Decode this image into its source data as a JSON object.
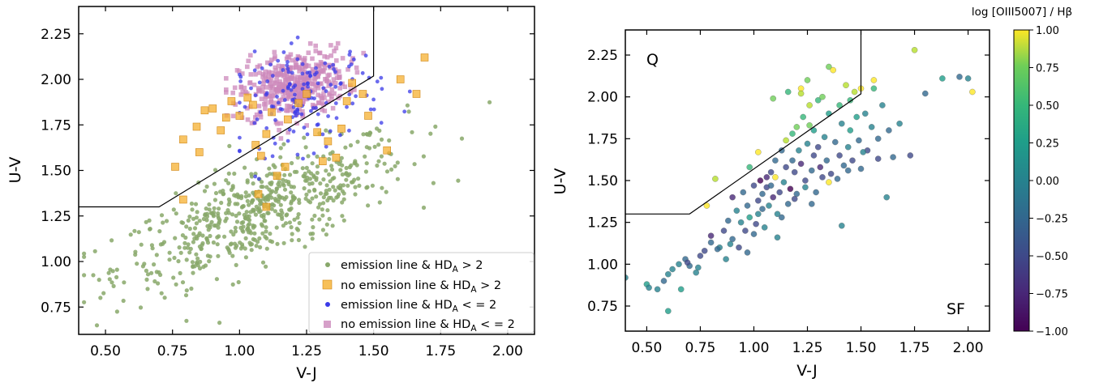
{
  "chart_data": [
    {
      "type": "scatter",
      "xlabel": "V-J",
      "ylabel": "U-V",
      "xlim": [
        0.4,
        2.1
      ],
      "ylim": [
        0.6,
        2.4
      ],
      "xticks": [
        "0.50",
        "0.75",
        "1.00",
        "1.25",
        "1.50",
        "1.75",
        "2.00"
      ],
      "yticks": [
        "0.75",
        "1.00",
        "1.25",
        "1.50",
        "1.75",
        "2.00",
        "2.25"
      ],
      "boundary": [
        [
          0.4,
          1.3
        ],
        [
          0.7,
          1.3
        ],
        [
          1.5,
          2.0183
        ],
        [
          1.5,
          2.4
        ]
      ],
      "legend_position": "lower-right",
      "series": [
        {
          "name": "emission line & HD",
          "sub": "A",
          "suffix": " > 2",
          "marker": "circle",
          "color": "#88a86a"
        },
        {
          "name": "no emission line & HD",
          "sub": "A",
          "suffix": " > 2",
          "marker": "square",
          "color": "#f5b030"
        },
        {
          "name": "emission line & HD",
          "sub": "A",
          "suffix": " < = 2",
          "marker": "circle",
          "color": "#3a3ae8"
        },
        {
          "name": "no emission line & HD",
          "sub": "A",
          "suffix": " < = 2",
          "marker": "square",
          "color": "#cc88bb"
        }
      ]
    },
    {
      "type": "scatter",
      "xlabel": "V-J",
      "ylabel": "U-V",
      "xlim": [
        0.4,
        2.1
      ],
      "ylim": [
        0.6,
        2.4
      ],
      "xticks": [
        "0.50",
        "0.75",
        "1.00",
        "1.25",
        "1.50",
        "1.75",
        "2.00"
      ],
      "yticks": [
        "0.75",
        "1.00",
        "1.25",
        "1.50",
        "1.75",
        "2.00",
        "2.25"
      ],
      "boundary": [
        [
          0.4,
          1.3
        ],
        [
          0.7,
          1.3
        ],
        [
          1.5,
          2.0183
        ],
        [
          1.5,
          2.4
        ]
      ],
      "region_labels": [
        "Q",
        "SF"
      ],
      "colorbar": {
        "label": "log [OIII5007] / Hβ",
        "range": [
          -1.0,
          1.0
        ],
        "ticks": [
          "1.00",
          "0.75",
          "0.50",
          "0.25",
          "0.00",
          "−0.25",
          "−0.50",
          "−0.75",
          "−1.00"
        ],
        "colormap": "viridis"
      }
    }
  ]
}
